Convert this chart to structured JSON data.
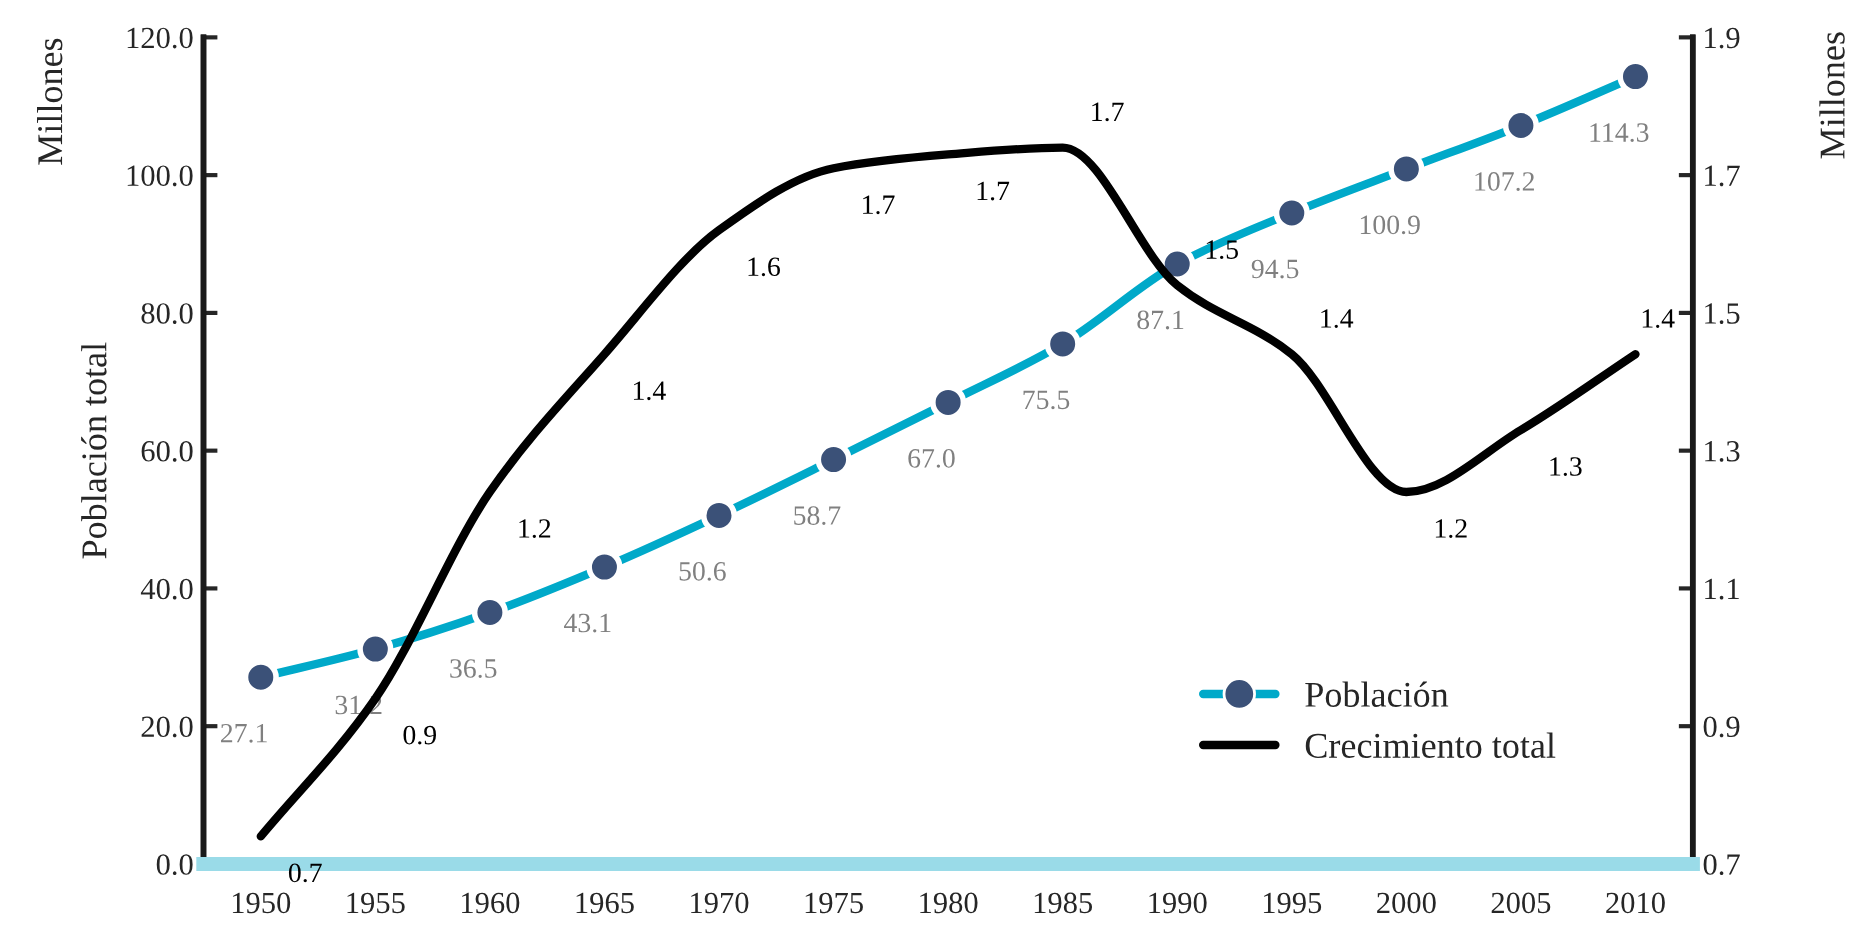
{
  "chart_data": {
    "type": "line",
    "ylabel": "Población total",
    "y2label": "Millones",
    "annotations": [
      "Millones"
    ],
    "categories": [
      "1950",
      "1955",
      "1960",
      "1965",
      "1970",
      "1975",
      "1980",
      "1985",
      "1990",
      "1995",
      "2000",
      "2005",
      "2010"
    ],
    "series": [
      {
        "name": "Población",
        "color": "#00a9c9",
        "marker": "circle",
        "values": [
          27.1,
          31.2,
          36.5,
          43.1,
          50.6,
          58.7,
          67.0,
          75.5,
          87.1,
          94.5,
          100.9,
          107.2,
          114.3
        ],
        "value_labels": [
          "27.1",
          "31.2",
          "36.5",
          "43.1",
          "50.6",
          "58.7",
          "67.0",
          "75.5",
          "87.1",
          "94.5",
          "100.9",
          "107.2",
          "114.3"
        ]
      },
      {
        "name": "Crecimiento total",
        "color": "#000000",
        "axis": "y2",
        "marker": "none",
        "values": [
          0.74,
          0.94,
          1.24,
          1.44,
          1.62,
          1.71,
          1.73,
          1.74,
          1.54,
          1.44,
          1.24,
          1.33,
          1.44
        ],
        "value_labels": [
          "0.7",
          "0.9",
          "1.2",
          "1.4",
          "1.6",
          "1.7",
          "1.7",
          "1.7",
          "1.5",
          "1.4",
          "1.2",
          "1.3",
          "1.4"
        ]
      }
    ],
    "ylim": [
      0,
      120
    ],
    "yticks": [
      {
        "value": 0,
        "label": "0.0"
      },
      {
        "value": 20,
        "label": "20.0"
      },
      {
        "value": 40,
        "label": "40.0"
      },
      {
        "value": 60,
        "label": "60.0"
      },
      {
        "value": 80,
        "label": "80.0"
      },
      {
        "value": 100,
        "label": "100.0"
      },
      {
        "value": 120,
        "label": "120.0"
      }
    ],
    "y2lim": [
      0.7,
      1.9
    ],
    "y2ticks": [
      0.7,
      0.9,
      1.1,
      1.3,
      1.5,
      1.7,
      1.9
    ],
    "grid": false,
    "legend": "bottom right",
    "line_style": "solid"
  }
}
